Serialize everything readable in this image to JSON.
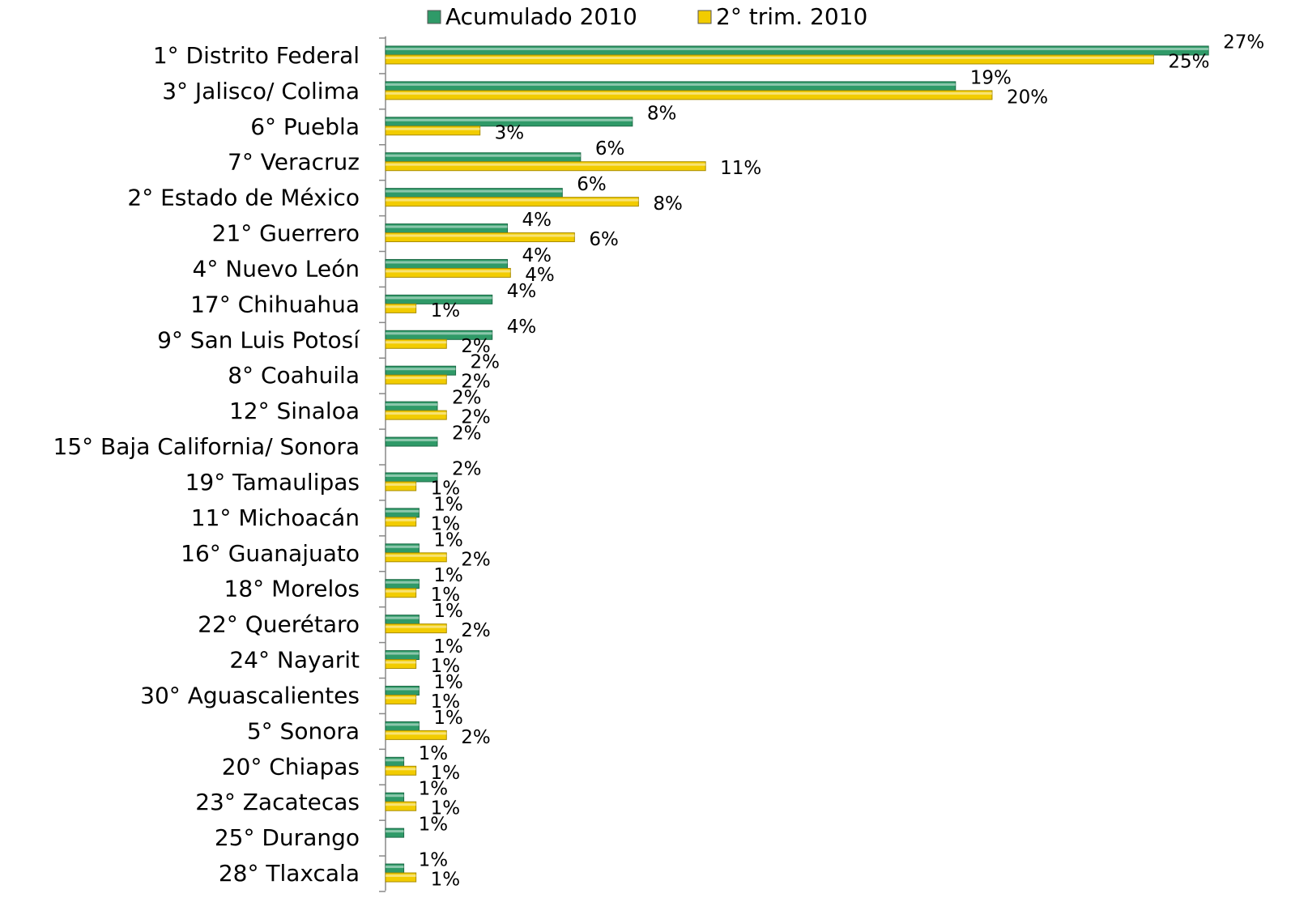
{
  "chart_data": {
    "type": "barh",
    "categories": [
      "1° Distrito Federal",
      "3° Jalisco/ Colima",
      "6° Puebla",
      "7° Veracruz",
      "2° Estado de México",
      "21° Guerrero",
      "4° Nuevo León",
      "17° Chihuahua",
      "9° San Luis Potosí",
      "8° Coahuila",
      "12° Sinaloa",
      "15° Baja California/ Sonora",
      "19° Tamaulipas",
      "11° Michoacán",
      "16° Guanajuato",
      "18° Morelos",
      "22° Querétaro",
      "24° Nayarit",
      "30° Aguascalientes",
      "5° Sonora",
      "20° Chiapas",
      "23° Zacatecas",
      "25° Durango",
      "28° Tlaxcala"
    ],
    "series": [
      {
        "name": "Acumulado 2010",
        "color": "#2f9a68",
        "values": [
          27,
          18.7,
          8.1,
          6.4,
          5.8,
          4.0,
          4.0,
          3.5,
          3.5,
          2.3,
          1.7,
          1.7,
          1.7,
          1.1,
          1.1,
          1.1,
          1.1,
          1.1,
          1.1,
          1.1,
          0.6,
          0.6,
          0.6,
          0.6
        ],
        "value_labels": [
          "27%",
          "19%",
          "8%",
          "6%",
          "6%",
          "4%",
          "4%",
          "4%",
          "4%",
          "2%",
          "2%",
          "2%",
          "2%",
          "1%",
          "1%",
          "1%",
          "1%",
          "1%",
          "1%",
          "1%",
          "1%",
          "1%",
          "1%",
          "1%"
        ]
      },
      {
        "name": "2° trim. 2010",
        "color": "#f2cc00",
        "values": [
          25.2,
          19.9,
          3.1,
          10.5,
          8.3,
          6.2,
          4.1,
          1.0,
          2.0,
          2.0,
          2.0,
          null,
          1.0,
          1.0,
          2.0,
          1.0,
          2.0,
          1.0,
          1.0,
          2.0,
          1.0,
          1.0,
          null,
          1.0
        ],
        "value_labels": [
          "25%",
          "20%",
          "3%",
          "11%",
          "8%",
          "6%",
          "4%",
          "1%",
          "2%",
          "2%",
          "2%",
          null,
          "1%",
          "1%",
          "2%",
          "1%",
          "2%",
          "1%",
          "1%",
          "2%",
          "1%",
          "1%",
          null,
          "1%"
        ]
      }
    ],
    "xlim": [
      0,
      29.6
    ],
    "legend": "top"
  }
}
